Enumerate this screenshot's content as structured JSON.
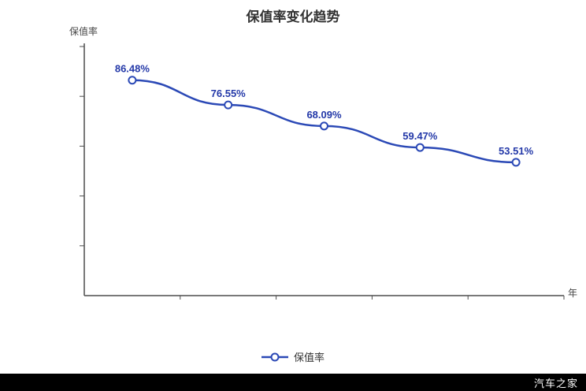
{
  "title": "保值率变化趋势",
  "y_axis_label": "保值率",
  "x_axis_unit": "年",
  "legend": {
    "label": "保值率"
  },
  "watermark": "汽车之家",
  "colors": {
    "line": "#2b49b6",
    "marker_fill": "#ffffff",
    "marker_stroke": "#2b49b6",
    "data_label": "#2338a8",
    "axis": "#4d4d4d",
    "title": "#333333",
    "watermark_bg": "#000000",
    "watermark_text": "#ffffff"
  },
  "chart_data": {
    "type": "line",
    "x": [
      1,
      2,
      3,
      4,
      5
    ],
    "x_axis_unit": "年",
    "series": [
      {
        "name": "保值率",
        "values": [
          86.48,
          76.55,
          68.09,
          59.47,
          53.51
        ]
      }
    ],
    "point_labels": [
      "86.48%",
      "76.55%",
      "68.09%",
      "59.47%",
      "53.51%"
    ],
    "title": "保值率变化趋势",
    "xlabel": "年",
    "ylabel": "保值率",
    "ylim": [
      0,
      100
    ],
    "y_ticks": [
      0,
      20,
      40,
      60,
      80,
      100
    ],
    "grid": false,
    "y_tick_labels_visible": false,
    "x_tick_labels_visible": false,
    "legend_position": "bottom"
  }
}
